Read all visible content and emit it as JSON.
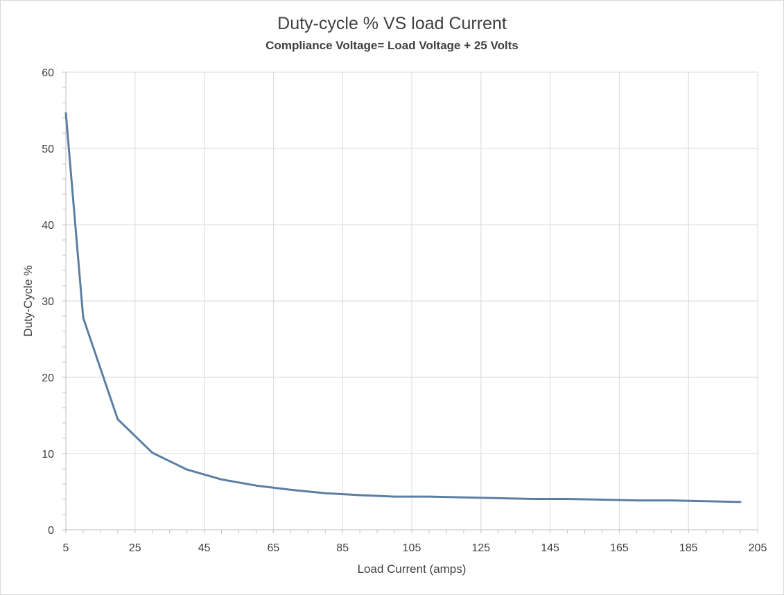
{
  "chart_data": {
    "type": "line",
    "title": "Duty-cycle % VS load Current",
    "subtitle": "Compliance Voltage= Load Voltage + 25 Volts",
    "xlabel": "Load Current (amps)",
    "ylabel": "Duty-Cycle %",
    "xlim": [
      5,
      205
    ],
    "ylim": [
      0,
      60
    ],
    "xticks": [
      5,
      25,
      45,
      65,
      85,
      105,
      125,
      145,
      165,
      185,
      205
    ],
    "yticks": [
      0,
      10,
      20,
      30,
      40,
      50,
      60
    ],
    "grid": true,
    "legend": "none",
    "series": [
      {
        "color": "#5b7fa3",
        "x": [
          5,
          10,
          20,
          30,
          40,
          50,
          60,
          70,
          80,
          90,
          100,
          110,
          120,
          130,
          140,
          150,
          160,
          170,
          180,
          190,
          200
        ],
        "y": [
          54.6,
          27.8,
          14.5,
          10.1,
          7.9,
          6.6,
          5.8,
          5.25,
          4.8,
          4.55,
          4.35,
          4.35,
          4.25,
          4.15,
          4.05,
          4.05,
          3.95,
          3.85,
          3.85,
          3.75,
          3.65
        ]
      }
    ]
  }
}
